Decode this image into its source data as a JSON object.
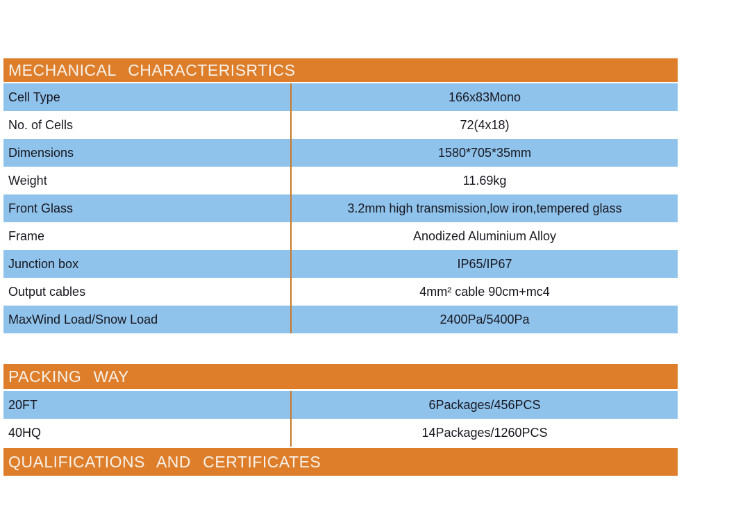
{
  "colors": {
    "header_background": "#DE7E2B",
    "header_text": "#F7F2EA",
    "row_blue": "#90C3EC",
    "row_white": "#FFFFFF",
    "column_divider": "#C8792B",
    "body_text": "#17171F"
  },
  "sections": [
    {
      "title": "MECHANICAL CHARACTERISRTICS",
      "rows": [
        {
          "label": "Cell Type",
          "value": "166x83Mono"
        },
        {
          "label": "No. of Cells",
          "value": "72(4x18)"
        },
        {
          "label": "Dimensions",
          "value": "1580*705*35mm"
        },
        {
          "label": "Weight",
          "value": "11.69kg"
        },
        {
          "label": "Front Glass",
          "value": "3.2mm high transmission,low iron,tempered glass"
        },
        {
          "label": "Frame",
          "value": "Anodized Aluminium Alloy"
        },
        {
          "label": "Junction box",
          "value": "IP65/IP67"
        },
        {
          "label": "Output cables",
          "value": "4mm² cable 90cm+mc4"
        },
        {
          "label": "MaxWind Load/Snow Load",
          "value": "2400Pa/5400Pa"
        }
      ]
    },
    {
      "title": "PACKING WAY",
      "rows": [
        {
          "label": "20FT",
          "value": "6Packages/456PCS"
        },
        {
          "label": "40HQ",
          "value": "14Packages/1260PCS"
        }
      ]
    },
    {
      "title": "QUALIFICATIONS AND CERTIFICATES",
      "rows": []
    }
  ]
}
